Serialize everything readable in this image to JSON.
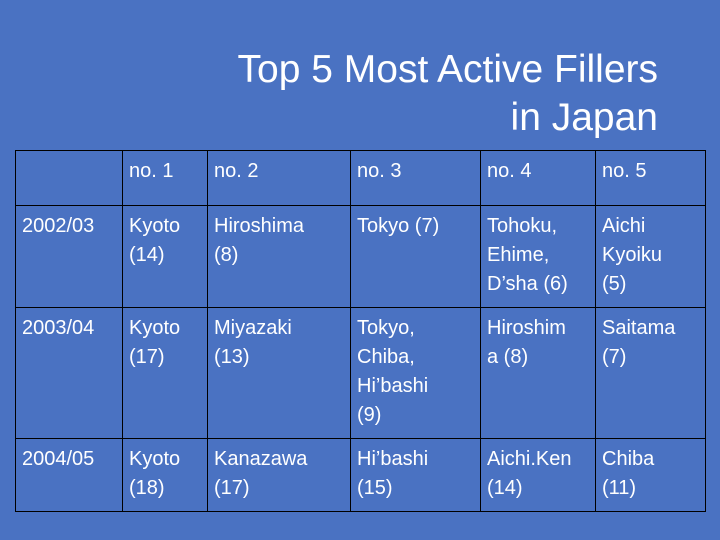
{
  "title": {
    "line1": "Top 5 Most Active Fillers",
    "line2": "in Japan"
  },
  "table": {
    "columns": [
      "",
      "no. 1",
      "no. 2",
      "no. 3",
      "no. 4",
      "no. 5"
    ],
    "rows": [
      {
        "year": "2002/03",
        "cells": [
          "Kyoto\n(14)",
          "Hiroshima\n(8)",
          "Tokyo (7)",
          "Tohoku,\nEhime,\nD’sha (6)",
          "Aichi\nKyoiku\n(5)"
        ]
      },
      {
        "year": "2003/04",
        "cells": [
          "Kyoto\n(17)",
          "Miyazaki\n(13)",
          "Tokyo,\nChiba,\nHi’bashi\n(9)",
          "Hiroshim\na (8)",
          "Saitama\n(7)"
        ]
      },
      {
        "year": "2004/05",
        "cells": [
          "Kyoto\n(18)",
          "Kanazawa\n(17)",
          "Hi’bashi\n(15)",
          "Aichi.Ken\n(14)",
          "Chiba\n(11)"
        ]
      }
    ]
  }
}
